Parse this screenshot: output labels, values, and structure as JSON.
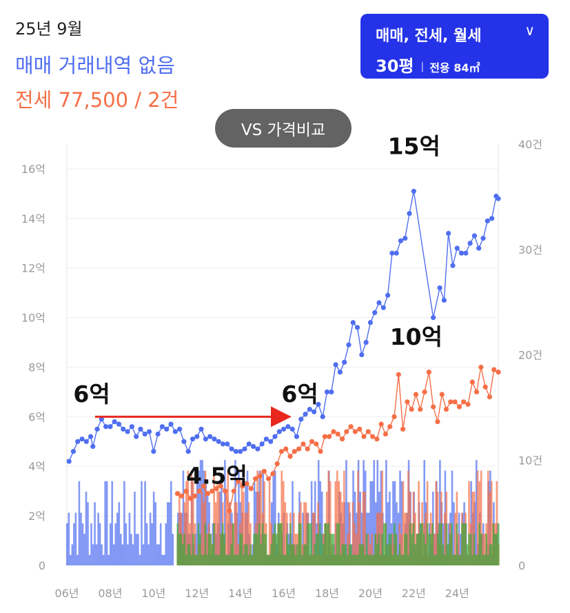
{
  "header": {
    "date": "25년 9월",
    "sale_status": "매매 거래내역 없음",
    "jeonse_status": "전세 77,500 / 2건"
  },
  "filter": {
    "types": "매매, 전세, 월세",
    "size": "30평",
    "area": "전용 84㎡",
    "icon": "chevron-down-icon"
  },
  "compare_button": "VS 가격비교",
  "colors": {
    "sale": "#4f6ef0",
    "jeonse": "#f56f47",
    "monthly": "#3ea83a",
    "arrow": "#e8281f",
    "filter_bg": "#2433e8"
  },
  "chart_data": {
    "type": "line",
    "x_ticks": [
      "06년",
      "08년",
      "10년",
      "12년",
      "14년",
      "16년",
      "18년",
      "20년",
      "22년",
      "24년"
    ],
    "y_left_ticks": [
      "0",
      "2억",
      "4억",
      "6억",
      "8억",
      "10억",
      "12억",
      "14억",
      "16억"
    ],
    "y_right_ticks": [
      "0",
      "10건",
      "20건",
      "30건",
      "40건"
    ],
    "ylim_left": [
      0,
      17
    ],
    "ylim_right": [
      0,
      40
    ],
    "xlim": [
      2006,
      2025.9
    ],
    "series": [
      {
        "key": "sale",
        "unit": "억",
        "points": [
          [
            2006.1,
            4.2
          ],
          [
            2006.3,
            4.6
          ],
          [
            2006.5,
            5.0
          ],
          [
            2006.7,
            5.1
          ],
          [
            2006.9,
            5.0
          ],
          [
            2007.1,
            5.2
          ],
          [
            2007.2,
            4.8
          ],
          [
            2007.4,
            5.5
          ],
          [
            2007.6,
            5.9
          ],
          [
            2007.8,
            5.6
          ],
          [
            2008.0,
            5.6
          ],
          [
            2008.2,
            5.8
          ],
          [
            2008.4,
            5.7
          ],
          [
            2008.6,
            5.5
          ],
          [
            2008.8,
            5.4
          ],
          [
            2009.0,
            5.6
          ],
          [
            2009.2,
            5.2
          ],
          [
            2009.4,
            5.5
          ],
          [
            2009.6,
            5.3
          ],
          [
            2009.8,
            5.4
          ],
          [
            2010.0,
            4.6
          ],
          [
            2010.2,
            5.3
          ],
          [
            2010.4,
            5.6
          ],
          [
            2010.6,
            5.5
          ],
          [
            2010.8,
            5.7
          ],
          [
            2011.0,
            5.4
          ],
          [
            2011.2,
            5.5
          ],
          [
            2011.4,
            5.0
          ],
          [
            2011.6,
            4.6
          ],
          [
            2011.8,
            5.1
          ],
          [
            2012.0,
            5.2
          ],
          [
            2012.2,
            5.5
          ],
          [
            2012.4,
            5.1
          ],
          [
            2012.6,
            5.2
          ],
          [
            2012.8,
            5.1
          ],
          [
            2013.0,
            5.0
          ],
          [
            2013.2,
            4.9
          ],
          [
            2013.4,
            4.9
          ],
          [
            2013.6,
            4.7
          ],
          [
            2013.8,
            4.6
          ],
          [
            2014.0,
            4.6
          ],
          [
            2014.2,
            4.7
          ],
          [
            2014.4,
            4.9
          ],
          [
            2014.6,
            4.8
          ],
          [
            2014.8,
            4.7
          ],
          [
            2015.0,
            4.9
          ],
          [
            2015.2,
            5.1
          ],
          [
            2015.4,
            5.0
          ],
          [
            2015.6,
            5.2
          ],
          [
            2015.8,
            5.4
          ],
          [
            2016.0,
            5.5
          ],
          [
            2016.2,
            5.6
          ],
          [
            2016.4,
            5.5
          ],
          [
            2016.6,
            5.2
          ],
          [
            2016.8,
            5.9
          ],
          [
            2017.0,
            6.1
          ],
          [
            2017.2,
            6.3
          ],
          [
            2017.4,
            6.2
          ],
          [
            2017.6,
            6.5
          ],
          [
            2017.8,
            6.0
          ],
          [
            2018.0,
            7.0
          ],
          [
            2018.2,
            7.0
          ],
          [
            2018.4,
            8.1
          ],
          [
            2018.6,
            7.8
          ],
          [
            2018.8,
            8.2
          ],
          [
            2019.0,
            8.9
          ],
          [
            2019.2,
            9.8
          ],
          [
            2019.4,
            9.6
          ],
          [
            2019.6,
            8.5
          ],
          [
            2019.8,
            9.0
          ],
          [
            2020.0,
            9.8
          ],
          [
            2020.2,
            10.2
          ],
          [
            2020.4,
            10.6
          ],
          [
            2020.6,
            10.4
          ],
          [
            2020.8,
            10.9
          ],
          [
            2021.0,
            12.6
          ],
          [
            2021.2,
            12.6
          ],
          [
            2021.4,
            13.1
          ],
          [
            2021.6,
            13.2
          ],
          [
            2021.8,
            14.2
          ],
          [
            2022.0,
            15.1
          ],
          [
            2022.9,
            10.0
          ],
          [
            2023.2,
            11.2
          ],
          [
            2023.4,
            10.7
          ],
          [
            2023.6,
            13.4
          ],
          [
            2023.8,
            12.1
          ],
          [
            2024.0,
            12.8
          ],
          [
            2024.2,
            12.6
          ],
          [
            2024.4,
            12.6
          ],
          [
            2024.6,
            13.0
          ],
          [
            2024.8,
            13.3
          ],
          [
            2025.0,
            12.8
          ],
          [
            2025.2,
            13.2
          ],
          [
            2025.4,
            13.9
          ],
          [
            2025.6,
            14.0
          ],
          [
            2025.8,
            14.9
          ],
          [
            2025.9,
            14.8
          ]
        ]
      },
      {
        "key": "jeonse",
        "unit": "억",
        "points": [
          [
            2011.1,
            2.9
          ],
          [
            2011.3,
            2.8
          ],
          [
            2011.5,
            3.0
          ],
          [
            2011.7,
            2.7
          ],
          [
            2011.9,
            2.8
          ],
          [
            2012.1,
            3.0
          ],
          [
            2012.3,
            3.2
          ],
          [
            2012.5,
            2.9
          ],
          [
            2012.7,
            3.0
          ],
          [
            2012.9,
            3.1
          ],
          [
            2013.1,
            3.2
          ],
          [
            2013.3,
            3.0
          ],
          [
            2013.5,
            2.2
          ],
          [
            2013.7,
            3.0
          ],
          [
            2013.9,
            3.4
          ],
          [
            2014.1,
            3.2
          ],
          [
            2014.3,
            3.3
          ],
          [
            2014.5,
            3.1
          ],
          [
            2014.7,
            3.5
          ],
          [
            2014.9,
            3.6
          ],
          [
            2015.1,
            3.8
          ],
          [
            2015.3,
            3.5
          ],
          [
            2015.5,
            3.7
          ],
          [
            2015.7,
            4.1
          ],
          [
            2015.9,
            4.6
          ],
          [
            2016.1,
            4.7
          ],
          [
            2016.3,
            4.4
          ],
          [
            2016.5,
            4.6
          ],
          [
            2016.7,
            4.7
          ],
          [
            2016.9,
            4.9
          ],
          [
            2017.1,
            4.7
          ],
          [
            2017.3,
            5.0
          ],
          [
            2017.5,
            4.9
          ],
          [
            2017.7,
            4.6
          ],
          [
            2017.9,
            5.2
          ],
          [
            2018.1,
            5.2
          ],
          [
            2018.3,
            5.4
          ],
          [
            2018.5,
            5.3
          ],
          [
            2018.7,
            5.1
          ],
          [
            2018.9,
            5.4
          ],
          [
            2019.1,
            5.6
          ],
          [
            2019.3,
            5.4
          ],
          [
            2019.5,
            5.5
          ],
          [
            2019.7,
            5.2
          ],
          [
            2019.9,
            5.4
          ],
          [
            2020.1,
            5.2
          ],
          [
            2020.3,
            5.1
          ],
          [
            2020.5,
            5.7
          ],
          [
            2020.7,
            5.3
          ],
          [
            2020.9,
            5.6
          ],
          [
            2021.1,
            6.0
          ],
          [
            2021.3,
            7.7
          ],
          [
            2021.5,
            5.5
          ],
          [
            2021.7,
            6.6
          ],
          [
            2021.9,
            6.3
          ],
          [
            2022.1,
            6.9
          ],
          [
            2022.3,
            6.3
          ],
          [
            2022.5,
            7.0
          ],
          [
            2022.7,
            7.8
          ],
          [
            2022.9,
            6.4
          ],
          [
            2023.1,
            5.8
          ],
          [
            2023.3,
            6.9
          ],
          [
            2023.5,
            6.3
          ],
          [
            2023.7,
            6.6
          ],
          [
            2023.9,
            6.6
          ],
          [
            2024.1,
            6.4
          ],
          [
            2024.3,
            6.6
          ],
          [
            2024.5,
            6.5
          ],
          [
            2024.7,
            7.4
          ],
          [
            2024.9,
            7.0
          ],
          [
            2025.1,
            8.0
          ],
          [
            2025.3,
            7.2
          ],
          [
            2025.5,
            6.8
          ],
          [
            2025.7,
            7.9
          ],
          [
            2025.9,
            7.8
          ]
        ]
      }
    ],
    "volume": {
      "unit": "건",
      "series_keys": [
        "sale",
        "jeonse",
        "monthly"
      ],
      "note": "monthly transaction counts, approximated"
    },
    "annotations": [
      {
        "text": "6억",
        "x": 2006.3,
        "y": 6.6
      },
      {
        "text": "6억",
        "x": 2015.9,
        "y": 6.6
      },
      {
        "text": "4.5억",
        "x": 2011.5,
        "y": 3.3
      },
      {
        "text": "15억",
        "x": 2020.8,
        "y": 16.6
      },
      {
        "text": "10억",
        "x": 2020.9,
        "y": 8.9
      }
    ],
    "arrow": {
      "from": [
        2007.3,
        6.0
      ],
      "to": [
        2016.3,
        6.0
      ]
    },
    "grid": true
  }
}
